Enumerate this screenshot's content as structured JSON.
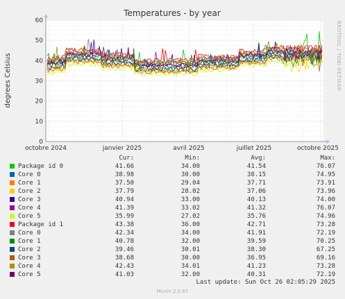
{
  "chart_data": {
    "type": "line",
    "title": "Temperatures - by year",
    "ylabel": "degrees Celsius",
    "ylim": [
      0,
      60
    ],
    "yticks": [
      0,
      10,
      20,
      30,
      40,
      50,
      60
    ],
    "xtick_labels": [
      "octobre 2024",
      "janvier 2025",
      "avril 2025",
      "juillet 2025",
      "octobre 2025"
    ],
    "grid": true,
    "series": [
      {
        "name": "Package id 0",
        "color": "#00cc00",
        "cur": "41.66",
        "min": "34.00",
        "avg": "41.54",
        "max": "76.07"
      },
      {
        "name": "Core 0",
        "color": "#0066b3",
        "cur": "38.98",
        "min": "30.00",
        "avg": "38.15",
        "max": "74.95"
      },
      {
        "name": "Core 1",
        "color": "#ff8000",
        "cur": "37.50",
        "min": "29.04",
        "avg": "37.71",
        "max": "73.91"
      },
      {
        "name": "Core 2",
        "color": "#ffcc00",
        "cur": "37.79",
        "min": "28.02",
        "avg": "37.06",
        "max": "73.96"
      },
      {
        "name": "Core 3",
        "color": "#330099",
        "cur": "40.94",
        "min": "33.00",
        "avg": "40.13",
        "max": "74.00"
      },
      {
        "name": "Core 4",
        "color": "#990099",
        "cur": "41.39",
        "min": "33.02",
        "avg": "41.32",
        "max": "76.07"
      },
      {
        "name": "Core 5",
        "color": "#ccff00",
        "cur": "35.99",
        "min": "27.02",
        "avg": "35.76",
        "max": "74.96"
      },
      {
        "name": "Package id 1",
        "color": "#ff0000",
        "cur": "43.38",
        "min": "36.00",
        "avg": "42.71",
        "max": "73.28"
      },
      {
        "name": "Core 0",
        "color": "#808080",
        "cur": "42.34",
        "min": "34.00",
        "avg": "41.91",
        "max": "72.19"
      },
      {
        "name": "Core 1",
        "color": "#008f00",
        "cur": "40.78",
        "min": "32.00",
        "avg": "39.59",
        "max": "70.25"
      },
      {
        "name": "Core 2",
        "color": "#00487d",
        "cur": "39.46",
        "min": "30.01",
        "avg": "38.30",
        "max": "67.25"
      },
      {
        "name": "Core 3",
        "color": "#b35a00",
        "cur": "38.68",
        "min": "30.00",
        "avg": "36.95",
        "max": "69.16"
      },
      {
        "name": "Core 4",
        "color": "#b38f00",
        "cur": "42.43",
        "min": "34.01",
        "avg": "41.23",
        "max": "73.28"
      },
      {
        "name": "Core 5",
        "color": "#6b006b",
        "cur": "41.03",
        "min": "32.00",
        "avg": "40.31",
        "max": "72.19"
      }
    ]
  },
  "legend_header": {
    "cur": "Cur:",
    "min": "Min:",
    "avg": "Avg:",
    "max": "Max:"
  },
  "side_text": "RRDTOOL / TOBI OETIKER",
  "last_update": "Last update: Sun Oct 26 02:05:29 2025",
  "footer": "Munin 2.0.67"
}
